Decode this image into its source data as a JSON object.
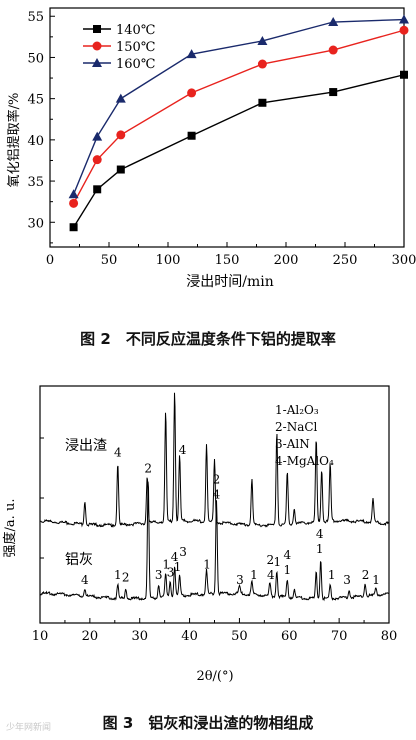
{
  "figure2": {
    "caption": "图 2　不同反应温度条件下铝的提取率",
    "chart_data": {
      "type": "line",
      "xlabel": "浸出时间/min",
      "ylabel": "氧化铝提取率/%",
      "xlim": [
        0,
        300
      ],
      "ylim": [
        27,
        56
      ],
      "x_ticks": [
        0,
        50,
        100,
        150,
        200,
        250,
        300
      ],
      "y_ticks": [
        30,
        35,
        40,
        45,
        50,
        55
      ],
      "grid": false,
      "legend_position": "top-left",
      "series": [
        {
          "name": "140℃",
          "marker": "square",
          "color": "#000000",
          "x": [
            20,
            40,
            60,
            120,
            180,
            240,
            300
          ],
          "y": [
            29.4,
            34.0,
            36.4,
            40.5,
            44.5,
            45.8,
            47.9
          ]
        },
        {
          "name": "150℃",
          "marker": "circle",
          "color": "#e8231e",
          "x": [
            20,
            40,
            60,
            120,
            180,
            240,
            300
          ],
          "y": [
            32.3,
            37.6,
            40.6,
            45.7,
            49.2,
            50.9,
            53.3
          ]
        },
        {
          "name": "160℃",
          "marker": "triangle",
          "color": "#1a2a6c",
          "x": [
            20,
            40,
            60,
            120,
            180,
            240,
            300
          ],
          "y": [
            33.4,
            40.4,
            45.0,
            50.4,
            52.0,
            54.3,
            54.6
          ]
        }
      ]
    }
  },
  "figure3": {
    "caption": "图 3　铝灰和浸出渣的物相组成",
    "chart_data": {
      "type": "line",
      "xlabel": "2θ/(°)",
      "ylabel": "强度/a. u.",
      "xlim": [
        10,
        80
      ],
      "x_ticks": [
        10,
        20,
        30,
        40,
        50,
        60,
        70,
        80
      ],
      "y_tick_labels": false,
      "legend_lines": [
        "1-Al₂O₃",
        "2-NaCl",
        "3-AlN",
        "4-MgAlO₄"
      ],
      "series": [
        {
          "name": "浸出渣",
          "baseline": 0.0,
          "peaks": [
            {
              "x": 19.0,
              "h": 0.09
            },
            {
              "x": 25.6,
              "h": 0.24
            },
            {
              "x": 31.5,
              "h": 0.18
            },
            {
              "x": 35.2,
              "h": 0.42
            },
            {
              "x": 37.0,
              "h": 0.5
            },
            {
              "x": 38.0,
              "h": 0.25
            },
            {
              "x": 43.4,
              "h": 0.3
            },
            {
              "x": 45.0,
              "h": 0.24
            },
            {
              "x": 52.5,
              "h": 0.18
            },
            {
              "x": 57.5,
              "h": 0.36
            },
            {
              "x": 59.6,
              "h": 0.2
            },
            {
              "x": 61.0,
              "h": 0.06
            },
            {
              "x": 65.4,
              "h": 0.32
            },
            {
              "x": 66.5,
              "h": 0.2
            },
            {
              "x": 68.2,
              "h": 0.22
            },
            {
              "x": 76.8,
              "h": 0.09
            }
          ],
          "annotations": [
            {
              "x": 25.6,
              "label": "4"
            },
            {
              "x": 38.6,
              "label": "4"
            }
          ]
        },
        {
          "name": "铝灰",
          "baseline": 0.0,
          "peaks": [
            {
              "x": 19.0,
              "h": 0.03
            },
            {
              "x": 25.6,
              "h": 0.05
            },
            {
              "x": 27.2,
              "h": 0.04
            },
            {
              "x": 31.7,
              "h": 0.46
            },
            {
              "x": 33.8,
              "h": 0.05
            },
            {
              "x": 35.2,
              "h": 0.09
            },
            {
              "x": 36.1,
              "h": 0.06
            },
            {
              "x": 37.0,
              "h": 0.12
            },
            {
              "x": 38.0,
              "h": 0.08
            },
            {
              "x": 43.4,
              "h": 0.09
            },
            {
              "x": 45.4,
              "h": 0.36
            },
            {
              "x": 50.0,
              "h": 0.03
            },
            {
              "x": 52.5,
              "h": 0.05
            },
            {
              "x": 56.1,
              "h": 0.05
            },
            {
              "x": 57.5,
              "h": 0.1
            },
            {
              "x": 59.6,
              "h": 0.07
            },
            {
              "x": 61.0,
              "h": 0.03
            },
            {
              "x": 65.4,
              "h": 0.1
            },
            {
              "x": 66.3,
              "h": 0.15
            },
            {
              "x": 68.2,
              "h": 0.05
            },
            {
              "x": 72.0,
              "h": 0.03
            },
            {
              "x": 75.2,
              "h": 0.05
            },
            {
              "x": 77.4,
              "h": 0.03
            }
          ],
          "annotations": [
            {
              "x": 19.0,
              "label": "4"
            },
            {
              "x": 25.6,
              "label": "1"
            },
            {
              "x": 27.2,
              "label": "2"
            },
            {
              "x": 31.7,
              "label": "2"
            },
            {
              "x": 33.8,
              "label": "3"
            },
            {
              "x": 35.3,
              "label": "1"
            },
            {
              "x": 36.2,
              "label": "3"
            },
            {
              "x": 37.0,
              "label": "4"
            },
            {
              "x": 37.6,
              "label": "1"
            },
            {
              "x": 38.7,
              "label": "3"
            },
            {
              "x": 43.5,
              "label": "1"
            },
            {
              "x": 45.4,
              "label": "4"
            },
            {
              "x": 45.4,
              "label": "2"
            },
            {
              "x": 50.1,
              "label": "3"
            },
            {
              "x": 52.9,
              "label": "1"
            },
            {
              "x": 56.3,
              "label": "4"
            },
            {
              "x": 56.2,
              "label": "2"
            },
            {
              "x": 57.6,
              "label": "1"
            },
            {
              "x": 59.6,
              "label": "1"
            },
            {
              "x": 59.6,
              "label": "4"
            },
            {
              "x": 66.1,
              "label": "1"
            },
            {
              "x": 66.1,
              "label": "4"
            },
            {
              "x": 68.5,
              "label": "1"
            },
            {
              "x": 71.6,
              "label": "3"
            },
            {
              "x": 75.3,
              "label": "2"
            },
            {
              "x": 77.4,
              "label": "1"
            }
          ]
        }
      ]
    }
  },
  "watermark": "少年网新闻"
}
